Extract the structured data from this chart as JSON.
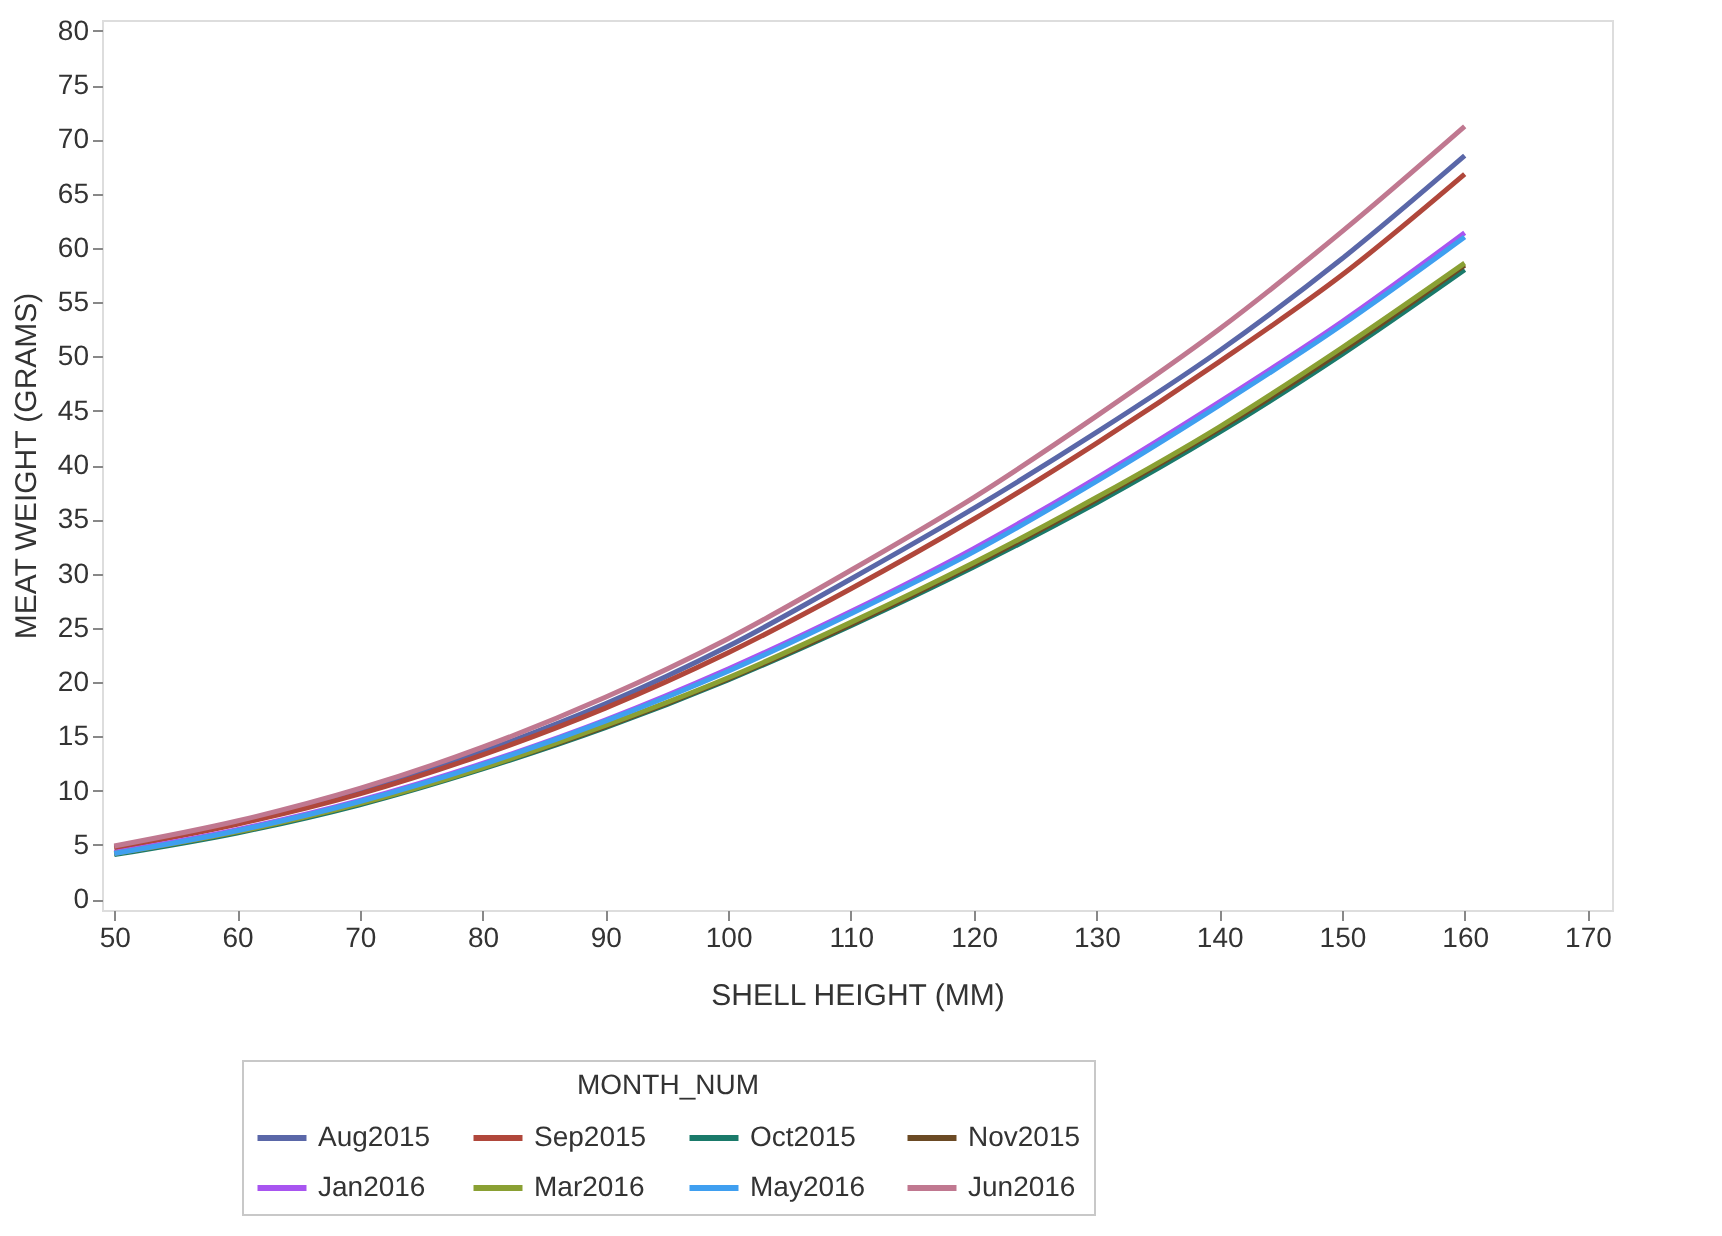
{
  "chart_data": {
    "type": "line",
    "xlabel": "SHELL HEIGHT (MM)",
    "ylabel": "MEAT WEIGHT (GRAMS)",
    "legend_title": "MONTH_NUM",
    "legend": "bottom",
    "grid": false,
    "marker": "none",
    "line_style": "solid",
    "x": [
      50,
      60,
      70,
      80,
      90,
      100,
      110,
      120,
      130,
      140,
      150,
      160
    ],
    "xlim": [
      49,
      172
    ],
    "xticks": [
      50,
      60,
      70,
      80,
      90,
      100,
      110,
      120,
      130,
      140,
      150,
      160,
      170
    ],
    "ylim": [
      -1,
      81
    ],
    "yticks": [
      0,
      5,
      10,
      15,
      20,
      25,
      30,
      35,
      40,
      45,
      50,
      55,
      60,
      65,
      70,
      75,
      80
    ],
    "series": [
      {
        "name": "Aug2015",
        "color": "#5a67a8",
        "values": [
          4.8,
          7.0,
          9.9,
          13.6,
          18.0,
          23.3,
          29.5,
          36.0,
          43.0,
          50.5,
          59.0,
          68.5
        ]
      },
      {
        "name": "Sep2015",
        "color": "#b0473b",
        "values": [
          4.7,
          6.9,
          9.7,
          13.3,
          17.6,
          22.7,
          28.6,
          35.0,
          42.0,
          49.5,
          57.5,
          66.8
        ]
      },
      {
        "name": "Oct2015",
        "color": "#1a7a6a",
        "values": [
          4.1,
          6.1,
          8.7,
          12.0,
          15.8,
          20.2,
          25.2,
          30.6,
          36.5,
          43.0,
          50.2,
          58.0
        ]
      },
      {
        "name": "Nov2015",
        "color": "#6b4a24",
        "values": [
          4.2,
          6.2,
          8.8,
          12.1,
          15.9,
          20.3,
          25.3,
          30.8,
          36.8,
          43.3,
          50.5,
          58.4
        ]
      },
      {
        "name": "Jan2016",
        "color": "#a855f0",
        "values": [
          4.3,
          6.4,
          9.1,
          12.5,
          16.5,
          21.2,
          26.5,
          32.3,
          38.8,
          45.8,
          53.2,
          61.4
        ]
      },
      {
        "name": "Mar2016",
        "color": "#8aa033",
        "values": [
          4.2,
          6.2,
          8.8,
          12.1,
          16.0,
          20.4,
          25.5,
          31.0,
          37.0,
          43.5,
          50.8,
          58.6
        ]
      },
      {
        "name": "May2016",
        "color": "#3f9ff0",
        "values": [
          4.2,
          6.3,
          9.0,
          12.4,
          16.4,
          21.0,
          26.3,
          32.0,
          38.5,
          45.5,
          52.9,
          61.0
        ]
      },
      {
        "name": "Jun2016",
        "color": "#c07890",
        "values": [
          4.9,
          7.2,
          10.2,
          14.0,
          18.6,
          24.0,
          30.3,
          37.0,
          44.5,
          52.5,
          61.5,
          71.2
        ]
      }
    ]
  }
}
